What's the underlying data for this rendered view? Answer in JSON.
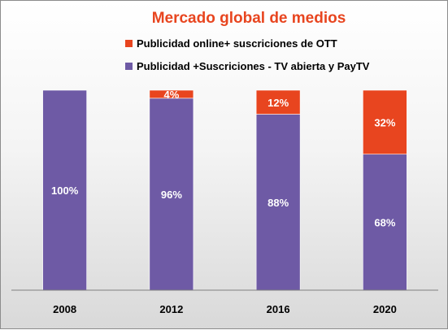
{
  "chart_data": {
    "type": "bar",
    "stacked": true,
    "title": "Mercado global de medios",
    "categories": [
      "2008",
      "2012",
      "2016",
      "2020"
    ],
    "series": [
      {
        "name": "Publicidad +Suscriciones - TV abierta y PayTV",
        "color": "#6e5aa5",
        "values": [
          100,
          96,
          88,
          68
        ],
        "labels": [
          "100%",
          "96%",
          "88%",
          "68%"
        ]
      },
      {
        "name": "Publicidad online+ suscriciones de OTT",
        "color": "#e8451f",
        "values": [
          0,
          4,
          12,
          32
        ],
        "labels": [
          "",
          "4%",
          "12%",
          "32%"
        ]
      }
    ],
    "legend_order": [
      1,
      0
    ],
    "legend_position": "top",
    "ylim": [
      0,
      100
    ],
    "grid": false,
    "title_color": "#e8451f"
  }
}
